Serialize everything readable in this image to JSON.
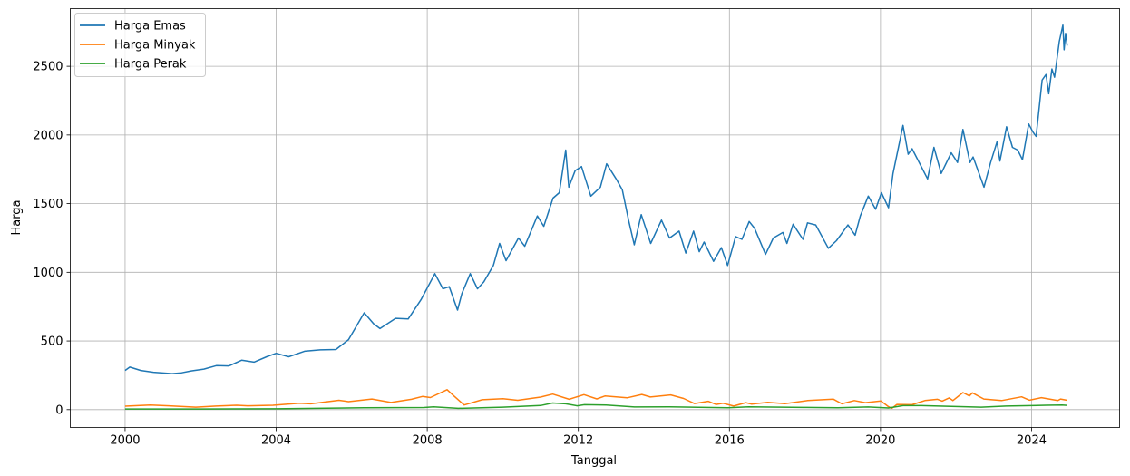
{
  "chart_data": {
    "type": "line",
    "title": "",
    "xlabel": "Tanggal",
    "ylabel": "Harga",
    "x_type": "date",
    "xlim": [
      "1998-07-20",
      "2026-05-01"
    ],
    "ylim": [
      -130,
      2920
    ],
    "x_ticks": [
      "2000-01-01",
      "2004-01-01",
      "2008-01-01",
      "2012-01-01",
      "2016-01-01",
      "2020-01-01",
      "2024-01-01"
    ],
    "x_tick_labels": [
      "2000",
      "2004",
      "2008",
      "2012",
      "2016",
      "2020",
      "2024"
    ],
    "y_ticks": [
      0,
      500,
      1000,
      1500,
      2000,
      2500
    ],
    "y_tick_labels": [
      "0",
      "500",
      "1000",
      "1500",
      "2000",
      "2500"
    ],
    "grid": true,
    "legend_position": "top-left",
    "series": [
      {
        "name": "Harga Emas",
        "color": "#1f77b4",
        "points": [
          [
            "2000-01-01",
            285
          ],
          [
            "2000-02-15",
            310
          ],
          [
            "2000-06-01",
            285
          ],
          [
            "2000-10-01",
            272
          ],
          [
            "2001-04-01",
            262
          ],
          [
            "2001-07-01",
            268
          ],
          [
            "2001-10-01",
            282
          ],
          [
            "2002-02-01",
            295
          ],
          [
            "2002-06-01",
            320
          ],
          [
            "2002-10-01",
            318
          ],
          [
            "2003-02-01",
            360
          ],
          [
            "2003-06-01",
            346
          ],
          [
            "2003-10-01",
            385
          ],
          [
            "2004-01-01",
            410
          ],
          [
            "2004-05-01",
            385
          ],
          [
            "2004-10-01",
            425
          ],
          [
            "2005-03-01",
            435
          ],
          [
            "2005-08-01",
            438
          ],
          [
            "2005-12-01",
            510
          ],
          [
            "2006-05-01",
            705
          ],
          [
            "2006-08-01",
            625
          ],
          [
            "2006-10-01",
            590
          ],
          [
            "2007-03-01",
            665
          ],
          [
            "2007-07-01",
            660
          ],
          [
            "2007-11-01",
            800
          ],
          [
            "2008-03-15",
            990
          ],
          [
            "2008-06-01",
            880
          ],
          [
            "2008-08-01",
            895
          ],
          [
            "2008-10-20",
            725
          ],
          [
            "2008-12-01",
            845
          ],
          [
            "2009-02-20",
            990
          ],
          [
            "2009-05-01",
            880
          ],
          [
            "2009-07-01",
            930
          ],
          [
            "2009-10-01",
            1050
          ],
          [
            "2009-12-01",
            1210
          ],
          [
            "2010-02-01",
            1085
          ],
          [
            "2010-06-01",
            1250
          ],
          [
            "2010-08-01",
            1190
          ],
          [
            "2010-12-01",
            1410
          ],
          [
            "2011-02-01",
            1335
          ],
          [
            "2011-05-01",
            1540
          ],
          [
            "2011-07-01",
            1580
          ],
          [
            "2011-09-01",
            1890
          ],
          [
            "2011-10-01",
            1620
          ],
          [
            "2011-12-01",
            1740
          ],
          [
            "2012-02-01",
            1770
          ],
          [
            "2012-05-01",
            1555
          ],
          [
            "2012-08-01",
            1620
          ],
          [
            "2012-10-01",
            1790
          ],
          [
            "2013-01-01",
            1680
          ],
          [
            "2013-03-01",
            1600
          ],
          [
            "2013-05-01",
            1380
          ],
          [
            "2013-06-25",
            1200
          ],
          [
            "2013-09-01",
            1420
          ],
          [
            "2013-12-01",
            1210
          ],
          [
            "2014-03-15",
            1380
          ],
          [
            "2014-06-01",
            1250
          ],
          [
            "2014-09-01",
            1300
          ],
          [
            "2014-11-05",
            1140
          ],
          [
            "2015-01-20",
            1300
          ],
          [
            "2015-03-15",
            1150
          ],
          [
            "2015-05-01",
            1220
          ],
          [
            "2015-08-01",
            1080
          ],
          [
            "2015-10-15",
            1180
          ],
          [
            "2015-12-15",
            1050
          ],
          [
            "2016-03-01",
            1260
          ],
          [
            "2016-05-01",
            1240
          ],
          [
            "2016-07-10",
            1370
          ],
          [
            "2016-09-01",
            1320
          ],
          [
            "2016-12-15",
            1130
          ],
          [
            "2017-03-01",
            1250
          ],
          [
            "2017-06-01",
            1290
          ],
          [
            "2017-07-10",
            1210
          ],
          [
            "2017-09-08",
            1350
          ],
          [
            "2017-12-12",
            1240
          ],
          [
            "2018-01-25",
            1360
          ],
          [
            "2018-04-15",
            1345
          ],
          [
            "2018-08-15",
            1175
          ],
          [
            "2018-11-01",
            1230
          ],
          [
            "2019-02-20",
            1345
          ],
          [
            "2019-05-01",
            1270
          ],
          [
            "2019-06-20",
            1410
          ],
          [
            "2019-09-05",
            1555
          ],
          [
            "2019-11-15",
            1460
          ],
          [
            "2020-01-10",
            1580
          ],
          [
            "2020-03-18",
            1470
          ],
          [
            "2020-05-01",
            1720
          ],
          [
            "2020-08-06",
            2070
          ],
          [
            "2020-09-25",
            1860
          ],
          [
            "2020-11-01",
            1900
          ],
          [
            "2021-03-31",
            1680
          ],
          [
            "2021-06-01",
            1910
          ],
          [
            "2021-08-10",
            1720
          ],
          [
            "2021-11-15",
            1870
          ],
          [
            "2022-01-15",
            1800
          ],
          [
            "2022-03-08",
            2040
          ],
          [
            "2022-05-15",
            1800
          ],
          [
            "2022-06-15",
            1840
          ],
          [
            "2022-09-28",
            1620
          ],
          [
            "2022-12-01",
            1800
          ],
          [
            "2023-02-01",
            1950
          ],
          [
            "2023-03-01",
            1810
          ],
          [
            "2023-05-04",
            2060
          ],
          [
            "2023-06-30",
            1910
          ],
          [
            "2023-08-20",
            1890
          ],
          [
            "2023-10-05",
            1820
          ],
          [
            "2023-12-04",
            2080
          ],
          [
            "2024-01-15",
            2020
          ],
          [
            "2024-02-14",
            1990
          ],
          [
            "2024-04-12",
            2400
          ],
          [
            "2024-05-20",
            2440
          ],
          [
            "2024-06-15",
            2300
          ],
          [
            "2024-07-16",
            2480
          ],
          [
            "2024-08-10",
            2420
          ],
          [
            "2024-09-25",
            2680
          ],
          [
            "2024-10-30",
            2800
          ],
          [
            "2024-11-10",
            2620
          ],
          [
            "2024-11-25",
            2740
          ],
          [
            "2024-12-10",
            2650
          ]
        ]
      },
      {
        "name": "Harga Minyak",
        "color": "#ff7f0e",
        "points": [
          [
            "2000-01-01",
            25
          ],
          [
            "2000-09-01",
            34
          ],
          [
            "2001-03-01",
            28
          ],
          [
            "2001-11-15",
            18
          ],
          [
            "2002-06-01",
            26
          ],
          [
            "2002-12-15",
            32
          ],
          [
            "2003-04-01",
            28
          ],
          [
            "2003-12-01",
            32
          ],
          [
            "2004-08-15",
            47
          ],
          [
            "2004-12-01",
            42
          ],
          [
            "2005-08-30",
            68
          ],
          [
            "2005-12-01",
            58
          ],
          [
            "2006-07-15",
            77
          ],
          [
            "2007-01-15",
            52
          ],
          [
            "2007-08-01",
            75
          ],
          [
            "2007-11-15",
            96
          ],
          [
            "2008-02-01",
            88
          ],
          [
            "2008-07-11",
            145
          ],
          [
            "2008-09-15",
            100
          ],
          [
            "2008-12-23",
            34
          ],
          [
            "2009-06-15",
            72
          ],
          [
            "2010-01-01",
            80
          ],
          [
            "2010-05-25",
            68
          ],
          [
            "2010-12-31",
            91
          ],
          [
            "2011-04-29",
            113
          ],
          [
            "2011-10-04",
            75
          ],
          [
            "2012-02-24",
            109
          ],
          [
            "2012-06-28",
            78
          ],
          [
            "2012-09-14",
            99
          ],
          [
            "2013-04-17",
            86
          ],
          [
            "2013-09-06",
            110
          ],
          [
            "2013-11-27",
            92
          ],
          [
            "2014-06-13",
            107
          ],
          [
            "2014-10-15",
            81
          ],
          [
            "2015-01-28",
            44
          ],
          [
            "2015-06-10",
            61
          ],
          [
            "2015-08-24",
            38
          ],
          [
            "2015-11-01",
            46
          ],
          [
            "2016-02-11",
            26
          ],
          [
            "2016-06-08",
            51
          ],
          [
            "2016-08-01",
            40
          ],
          [
            "2017-01-06",
            53
          ],
          [
            "2017-06-21",
            43
          ],
          [
            "2018-01-26",
            66
          ],
          [
            "2018-10-03",
            76
          ],
          [
            "2018-12-24",
            42
          ],
          [
            "2019-04-23",
            66
          ],
          [
            "2019-08-07",
            51
          ],
          [
            "2020-01-06",
            63
          ],
          [
            "2020-03-18",
            21
          ],
          [
            "2020-04-21",
            10
          ],
          [
            "2020-06-08",
            38
          ],
          [
            "2020-11-01",
            36
          ],
          [
            "2021-03-05",
            66
          ],
          [
            "2021-07-06",
            75
          ],
          [
            "2021-08-20",
            62
          ],
          [
            "2021-10-25",
            85
          ],
          [
            "2021-12-01",
            66
          ],
          [
            "2022-03-08",
            124
          ],
          [
            "2022-05-10",
            100
          ],
          [
            "2022-06-08",
            122
          ],
          [
            "2022-09-26",
            77
          ],
          [
            "2023-03-17",
            66
          ],
          [
            "2023-09-27",
            93
          ],
          [
            "2023-12-12",
            69
          ],
          [
            "2024-04-05",
            87
          ],
          [
            "2024-09-10",
            66
          ],
          [
            "2024-10-07",
            77
          ],
          [
            "2024-12-10",
            68
          ]
        ]
      },
      {
        "name": "Harga Perak",
        "color": "#2ca02c",
        "points": [
          [
            "2000-01-01",
            5
          ],
          [
            "2002-01-01",
            4.5
          ],
          [
            "2004-01-01",
            6
          ],
          [
            "2006-05-01",
            14
          ],
          [
            "2007-12-01",
            15
          ],
          [
            "2008-03-01",
            20
          ],
          [
            "2008-10-27",
            9
          ],
          [
            "2010-01-01",
            18
          ],
          [
            "2010-12-31",
            30
          ],
          [
            "2011-04-28",
            48
          ],
          [
            "2011-09-01",
            42
          ],
          [
            "2011-12-20",
            28
          ],
          [
            "2012-03-01",
            36
          ],
          [
            "2012-09-25",
            34
          ],
          [
            "2013-06-27",
            19
          ],
          [
            "2014-06-01",
            20
          ],
          [
            "2015-12-15",
            14
          ],
          [
            "2016-07-05",
            20
          ],
          [
            "2017-12-12",
            16
          ],
          [
            "2018-11-15",
            14
          ],
          [
            "2019-09-04",
            19
          ],
          [
            "2020-03-18",
            12
          ],
          [
            "2020-08-07",
            29
          ],
          [
            "2021-02-01",
            29
          ],
          [
            "2022-09-01",
            18
          ],
          [
            "2023-05-01",
            26
          ],
          [
            "2024-05-20",
            32
          ],
          [
            "2024-10-22",
            34
          ],
          [
            "2024-12-10",
            31
          ]
        ]
      }
    ]
  }
}
